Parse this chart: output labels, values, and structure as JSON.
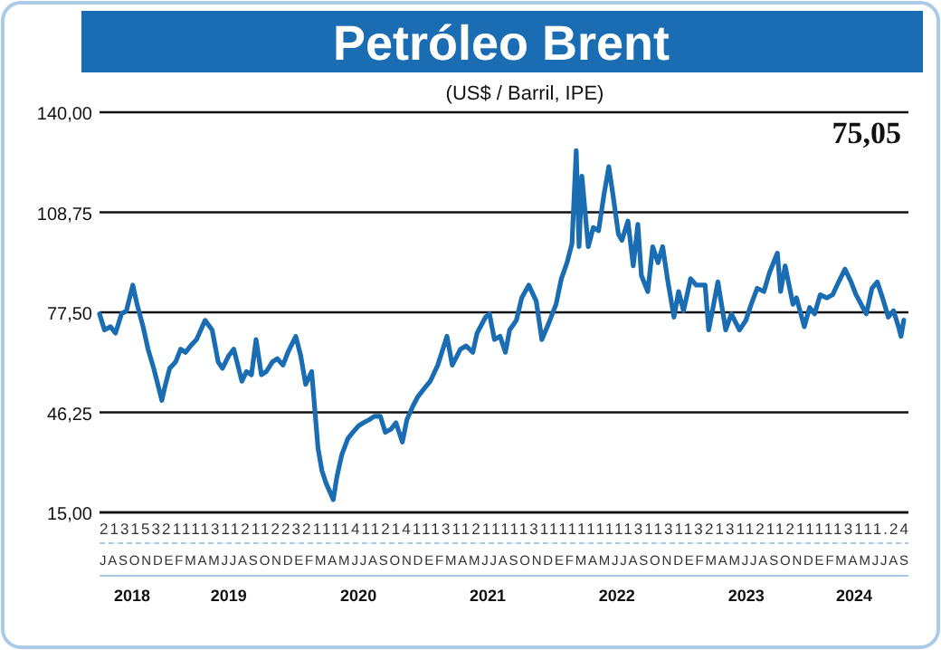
{
  "chart_data": {
    "type": "line",
    "title": "Petróleo Brent",
    "subtitle": "(US$ / Barril, IPE)",
    "annotations": [
      "75,05",
      "2131532111131121122321111411214111311211111311111111113113113213112112111113111.24",
      "JASONDEFMAMJJASONDEFMAMJJASONDEFMAMJJASONDEFMAMJJASONDEFMAMJJASONDEFMAMJJAS"
    ],
    "series": [
      {
        "color": "#1a6db2",
        "x": [
          "2018-07-01",
          "2018-07-15",
          "2018-08-01",
          "2018-08-15",
          "2018-09-01",
          "2018-09-15",
          "2018-10-03",
          "2018-10-15",
          "2018-11-01",
          "2018-11-15",
          "2018-12-01",
          "2018-12-24",
          "2019-01-01",
          "2019-01-15",
          "2019-02-01",
          "2019-02-15",
          "2019-03-01",
          "2019-03-15",
          "2019-04-01",
          "2019-04-25",
          "2019-05-15",
          "2019-06-01",
          "2019-06-13",
          "2019-07-01",
          "2019-07-15",
          "2019-08-07",
          "2019-08-20",
          "2019-09-03",
          "2019-09-16",
          "2019-10-01",
          "2019-10-15",
          "2019-11-01",
          "2019-11-15",
          "2019-12-01",
          "2019-12-15",
          "2020-01-06",
          "2020-01-20",
          "2020-02-03",
          "2020-02-20",
          "2020-03-09",
          "2020-03-20",
          "2020-04-01",
          "2020-04-21",
          "2020-05-01",
          "2020-05-15",
          "2020-06-01",
          "2020-06-15",
          "2020-07-01",
          "2020-07-15",
          "2020-08-01",
          "2020-08-15",
          "2020-09-01",
          "2020-09-15",
          "2020-10-01",
          "2020-10-15",
          "2020-11-02",
          "2020-11-15",
          "2020-12-01",
          "2020-12-15",
          "2021-01-05",
          "2021-01-20",
          "2021-02-10",
          "2021-03-08",
          "2021-03-23",
          "2021-04-15",
          "2021-05-01",
          "2021-05-20",
          "2021-06-01",
          "2021-06-25",
          "2021-07-06",
          "2021-07-20",
          "2021-08-05",
          "2021-08-20",
          "2021-09-01",
          "2021-09-20",
          "2021-10-05",
          "2021-10-25",
          "2021-11-15",
          "2021-12-01",
          "2021-12-20",
          "2022-01-10",
          "2022-01-25",
          "2022-02-10",
          "2022-02-24",
          "2022-03-08",
          "2022-03-16",
          "2022-03-24",
          "2022-04-11",
          "2022-04-25",
          "2022-05-10",
          "2022-05-25",
          "2022-06-08",
          "2022-06-20",
          "2022-07-05",
          "2022-07-15",
          "2022-08-01",
          "2022-08-16",
          "2022-08-29",
          "2022-09-08",
          "2022-09-26",
          "2022-10-10",
          "2022-10-25",
          "2022-11-07",
          "2022-11-22",
          "2022-12-09",
          "2022-12-22",
          "2023-01-05",
          "2023-01-25",
          "2023-02-10",
          "2023-03-07",
          "2023-03-17",
          "2023-03-31",
          "2023-04-12",
          "2023-05-04",
          "2023-05-20",
          "2023-06-12",
          "2023-06-30",
          "2023-07-15",
          "2023-08-01",
          "2023-08-20",
          "2023-09-05",
          "2023-09-27",
          "2023-10-06",
          "2023-10-19",
          "2023-11-10",
          "2023-11-20",
          "2023-12-12",
          "2023-12-27",
          "2024-01-10",
          "2024-01-26",
          "2024-02-14",
          "2024-03-01",
          "2024-03-18",
          "2024-04-05",
          "2024-04-22",
          "2024-05-06",
          "2024-06-04",
          "2024-06-20",
          "2024-07-05",
          "2024-07-20",
          "2024-08-05",
          "2024-08-20",
          "2024-09-03",
          "2024-09-10",
          "2024-09-18"
        ],
        "values": [
          77,
          72,
          73,
          71,
          77,
          78,
          86,
          80,
          73,
          66,
          60,
          50,
          54,
          60,
          62,
          66,
          65,
          67,
          69,
          75,
          72,
          62,
          60,
          64,
          66,
          56,
          59,
          58,
          69,
          58,
          59,
          62,
          63,
          61,
          65,
          70,
          64,
          55,
          59,
          35,
          28,
          24,
          19,
          26,
          33,
          38,
          40,
          42,
          43,
          44,
          45,
          45,
          40,
          41,
          43,
          37,
          44,
          48,
          51,
          54,
          56,
          61,
          70,
          61,
          66,
          67,
          65,
          71,
          76,
          77,
          69,
          70,
          65,
          72,
          75,
          82,
          86,
          81,
          69,
          74,
          80,
          88,
          93,
          99,
          128,
          98,
          120,
          98,
          104,
          103,
          114,
          123,
          114,
          102,
          100,
          106,
          92,
          105,
          89,
          84,
          98,
          93,
          98,
          87,
          76,
          84,
          78,
          88,
          86,
          86,
          72,
          80,
          87,
          72,
          77,
          72,
          75,
          80,
          85,
          84,
          90,
          96,
          84,
          92,
          80,
          82,
          73,
          79,
          77,
          83,
          82,
          83,
          87,
          91,
          87,
          83,
          77,
          85,
          87,
          82,
          76,
          78,
          73,
          70,
          75.05
        ]
      }
    ],
    "xlim": [
      "2018-07-01",
      "2024-10-01"
    ],
    "xticks": [
      {
        "value": "2018-10-01",
        "label": "2018"
      },
      {
        "value": "2019-07-01",
        "label": "2019"
      },
      {
        "value": "2020-07-01",
        "label": "2020"
      },
      {
        "value": "2021-07-01",
        "label": "2021"
      },
      {
        "value": "2022-07-01",
        "label": "2022"
      },
      {
        "value": "2023-07-01",
        "label": "2023"
      },
      {
        "value": "2024-05-01",
        "label": "2024"
      }
    ],
    "ylim": [
      15,
      140
    ],
    "yticks": [
      {
        "value": 15,
        "label": "15,00"
      },
      {
        "value": 46.25,
        "label": "46,25"
      },
      {
        "value": 77.5,
        "label": "77,50"
      },
      {
        "value": 108.75,
        "label": "108,75"
      },
      {
        "value": 140,
        "label": "140,00"
      }
    ],
    "grid": "y",
    "line_style": "solid",
    "marker": "none"
  }
}
